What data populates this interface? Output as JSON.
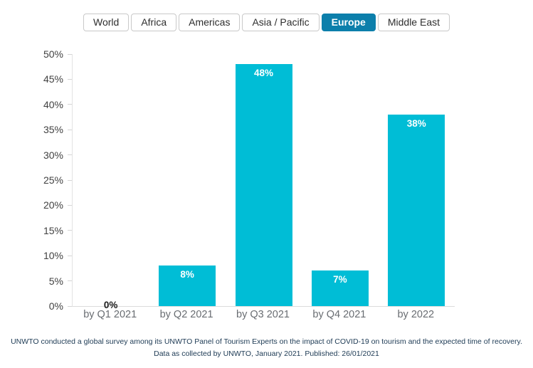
{
  "tabs": {
    "items": [
      {
        "label": "World",
        "active": false
      },
      {
        "label": "Africa",
        "active": false
      },
      {
        "label": "Americas",
        "active": false
      },
      {
        "label": "Asia / Pacific",
        "active": false
      },
      {
        "label": "Europe",
        "active": true
      },
      {
        "label": "Middle East",
        "active": false
      }
    ]
  },
  "chart_data": {
    "type": "bar",
    "categories": [
      "by Q1 2021",
      "by Q2 2021",
      "by Q3 2021",
      "by Q4 2021",
      "by 2022"
    ],
    "values": [
      0,
      8,
      48,
      7,
      38
    ],
    "value_labels": [
      "0%",
      "8%",
      "48%",
      "7%",
      "38%"
    ],
    "title": "",
    "xlabel": "",
    "ylabel": "",
    "ylim": [
      0,
      50
    ],
    "yticks": [
      0,
      5,
      10,
      15,
      20,
      25,
      30,
      35,
      40,
      45,
      50
    ],
    "ytick_suffix": "%",
    "grid": false,
    "legend_position": "none",
    "selected_series": "Europe"
  },
  "footer": {
    "line1": "UNWTO conducted a global survey among its UNWTO Panel of Tourism Experts on the impact of COVID-19 on tourism and the expected time of recovery.",
    "line2": "Data as collected by UNWTO, January 2021. Published: 26/01/2021"
  },
  "colors": {
    "bar": "#00bdd6",
    "active_tab_bg": "#0c7fab",
    "active_tab_text": "#ffffff",
    "axis_line": "#dcdcdc",
    "ytick_text": "#414141",
    "xtick_text": "#696d72",
    "zero_label_text": "#1a1a1a",
    "footer_text": "#1d3a54"
  }
}
